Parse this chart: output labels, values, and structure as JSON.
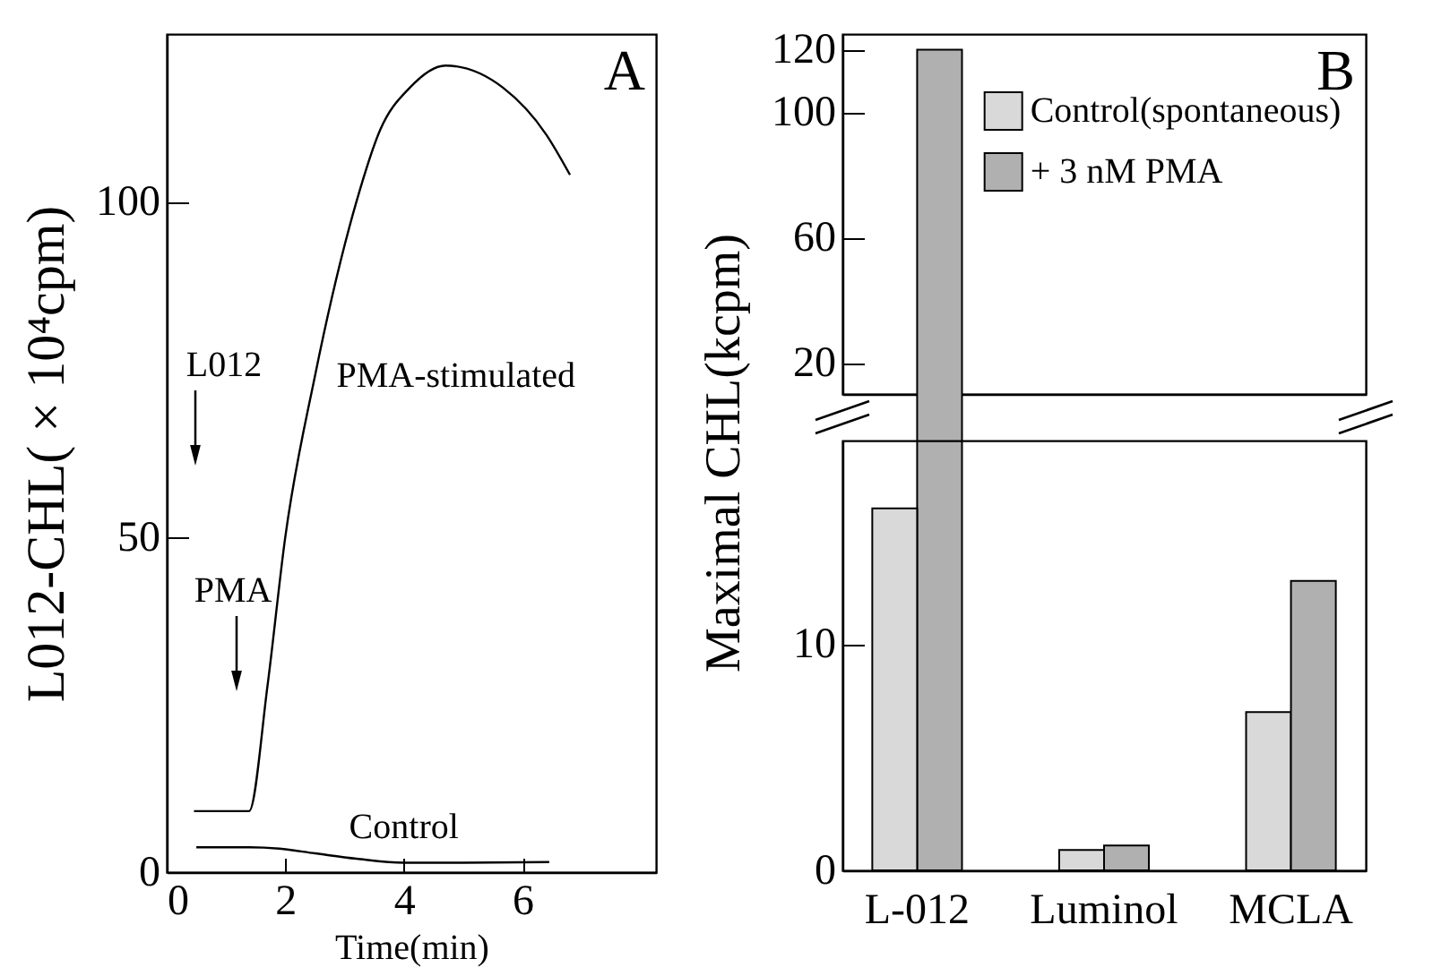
{
  "chart_data": [
    {
      "type": "line",
      "title": "A",
      "xlabel": "Time(min)",
      "ylabel": "L012-CHL( × 10⁴cpm)",
      "xlim": [
        0,
        8.25
      ],
      "xticks": [
        0,
        2,
        4,
        6
      ],
      "ylim": [
        0,
        125
      ],
      "yticks": [
        0,
        50,
        100
      ],
      "series": [
        {
          "name": "PMA-stimulated",
          "color": "#000000",
          "x": [
            0.46,
            1.39,
            1.7,
            2.0,
            2.5,
            3.2,
            3.6,
            4.1,
            4.7,
            5.67,
            6.4,
            6.8
          ],
          "values": [
            9.1,
            9.1,
            27.8,
            50,
            74,
            100,
            110.7,
            117,
            120.3,
            117,
            110,
            104
          ]
        },
        {
          "name": "Control",
          "color": "#000000",
          "x": [
            0.5,
            1.4,
            1.9,
            2.5,
            3.2,
            4.0,
            5.0,
            6.45
          ],
          "values": [
            3.7,
            3.7,
            3.5,
            2.8,
            2.0,
            1.4,
            1.4,
            1.5
          ]
        }
      ],
      "legend": false,
      "annotations": [
        "L012",
        "PMA"
      ]
    },
    {
      "type": "bar",
      "title": "B",
      "ylabel": "Maximal CHL(kcpm)",
      "categories": [
        null,
        null,
        null
      ],
      "ylim": [
        10,
        125
      ],
      "yticks": [
        20,
        60,
        100,
        120
      ],
      "tick_labels": "y",
      "legend": "top right",
      "series": [
        {
          "name": "Control(spontaneous)",
          "color": "#d9d9d9",
          "values": [
            null,
            null,
            null
          ]
        },
        {
          "name": "+ 3 nM PMA",
          "color": "#b0b0b0",
          "values": [
            120,
            null,
            null
          ]
        }
      ]
    },
    {
      "type": "bar",
      "categories": [
        "L-012",
        "Luminol",
        "MCLA"
      ],
      "ylim": [
        0,
        19
      ],
      "yticks": [
        0,
        10
      ],
      "series": [
        {
          "color": "#d9d9d9",
          "values": [
            16.0,
            0.9,
            7.0
          ]
        },
        {
          "color": "#b0b0b0",
          "values": [
            null,
            1.1,
            12.8
          ]
        }
      ]
    }
  ]
}
